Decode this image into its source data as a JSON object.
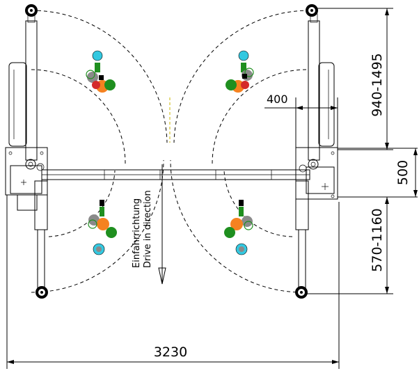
{
  "dimensions": {
    "overall_width": "3230",
    "arm_offset": "400",
    "front_arm_range": "940-1495",
    "column_depth": "500",
    "rear_arm_range": "570-1160"
  },
  "drive_direction": {
    "german": "Einfahrrichtung",
    "english": "Drive in direction"
  },
  "colors": {
    "green": "#1f8f1f",
    "orange": "#f58220",
    "cyan": "#33c8e0",
    "red": "#d42a2a",
    "gray": "#8a8a8a"
  }
}
